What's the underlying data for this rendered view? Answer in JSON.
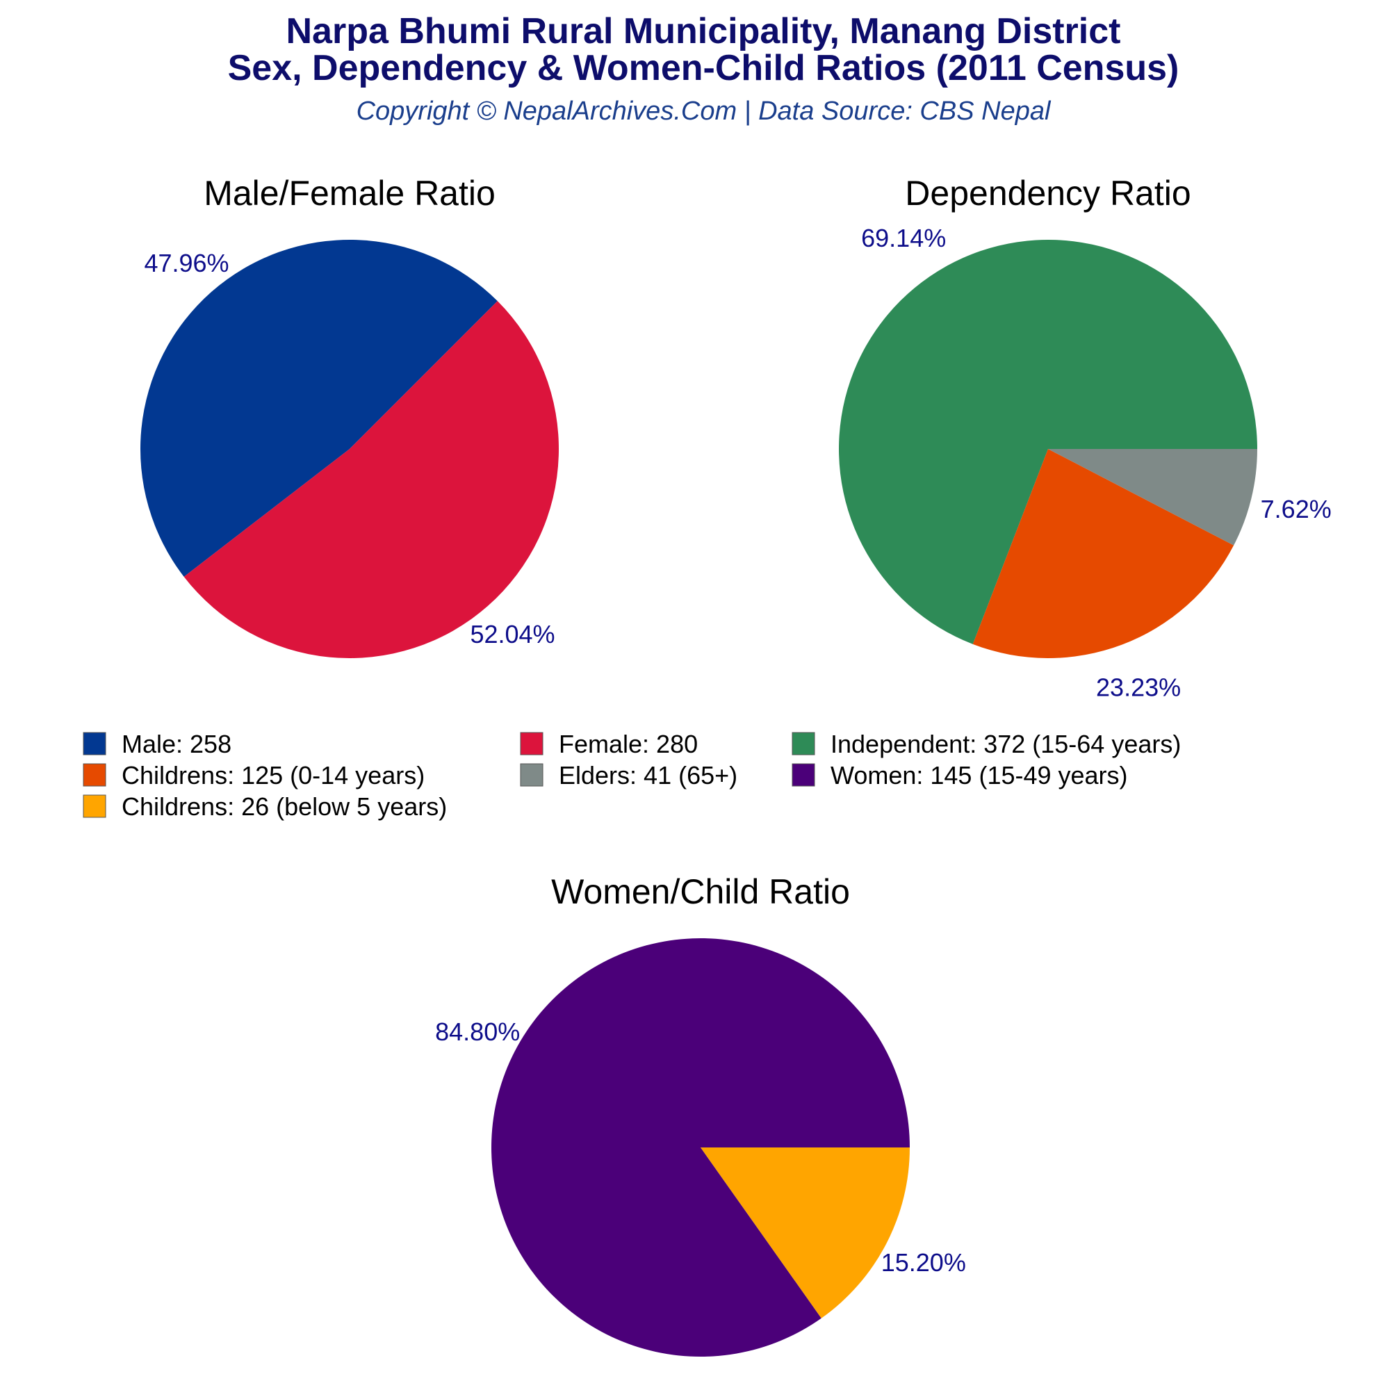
{
  "header": {
    "title_line1": "Narpa Bhumi Rural Municipality, Manang District",
    "title_line2": "Sex, Dependency & Women-Child Ratios (2011 Census)",
    "subtitle": "Copyright © NepalArchives.Com | Data Source: CBS Nepal"
  },
  "chart_data": [
    {
      "type": "pie",
      "title": "Male/Female Ratio",
      "slices": [
        {
          "label": "Male",
          "value": 258,
          "percent_label": "47.96%",
          "color": "#023891"
        },
        {
          "label": "Female",
          "value": 280,
          "percent_label": "52.04%",
          "color": "#dc143c"
        }
      ]
    },
    {
      "type": "pie",
      "title": "Dependency Ratio",
      "slices": [
        {
          "label": "Independent",
          "value": 372,
          "percent_label": "69.14%",
          "color": "#2e8b57"
        },
        {
          "label": "Childrens (0-14 years)",
          "value": 125,
          "percent_label": "23.23%",
          "color": "#e64a00"
        },
        {
          "label": "Elders (65+)",
          "value": 41,
          "percent_label": "7.62%",
          "color": "#7f8a88"
        }
      ]
    },
    {
      "type": "pie",
      "title": "Women/Child Ratio",
      "slices": [
        {
          "label": "Women",
          "value": 145,
          "percent_label": "84.80%",
          "color": "#4b0079"
        },
        {
          "label": "Childrens (below 5 years)",
          "value": 26,
          "percent_label": "15.20%",
          "color": "#ffa500"
        }
      ]
    }
  ],
  "legend": {
    "items": [
      {
        "text": "Male: 258",
        "color": "#023891"
      },
      {
        "text": "Female: 280",
        "color": "#dc143c"
      },
      {
        "text": "Independent: 372 (15-64 years)",
        "color": "#2e8b57"
      },
      {
        "text": "Childrens: 125 (0-14 years)",
        "color": "#e64a00"
      },
      {
        "text": "Elders: 41 (65+)",
        "color": "#7f8a88"
      },
      {
        "text": "Women: 145 (15-49 years)",
        "color": "#4b0079"
      },
      {
        "text": "Childrens: 26 (below 5 years)",
        "color": "#ffa500"
      }
    ]
  }
}
